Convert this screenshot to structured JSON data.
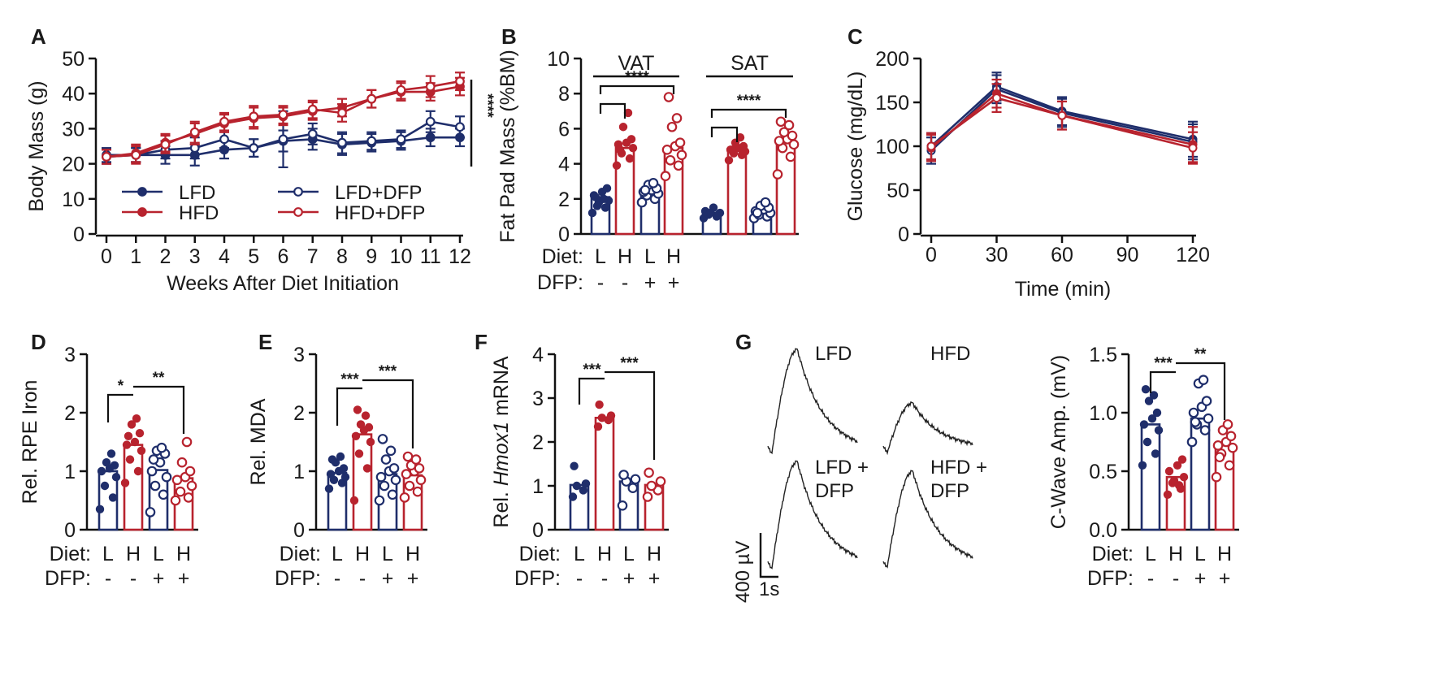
{
  "colors": {
    "lfd": "#1f2e6b",
    "hfd": "#b8232e",
    "text": "#1a1a1a"
  },
  "panel_labels": {
    "A": "A",
    "B": "B",
    "C": "C",
    "D": "D",
    "E": "E",
    "F": "F",
    "G": "G"
  },
  "row_labels": {
    "diet": "Diet:",
    "dfp": "DFP:",
    "diet_values": [
      "L",
      "H",
      "L",
      "H"
    ],
    "dfp_values": [
      "-",
      "-",
      "+",
      "+"
    ]
  },
  "chart_data": [
    {
      "id": "A",
      "type": "line",
      "xlabel": "Weeks After Diet Initiation",
      "ylabel": "Body Mass (g)",
      "xlim": [
        0,
        12
      ],
      "ylim": [
        0,
        50
      ],
      "xticks": [
        0,
        1,
        2,
        3,
        4,
        5,
        6,
        7,
        8,
        9,
        10,
        11,
        12
      ],
      "yticks": [
        0,
        10,
        20,
        30,
        40,
        50
      ],
      "x": [
        0,
        1,
        2,
        3,
        4,
        5,
        6,
        7,
        8,
        9,
        10,
        11,
        12
      ],
      "series": [
        {
          "name": "LFD",
          "values": [
            22.5,
            22.5,
            22.5,
            22.5,
            24,
            24.5,
            26.5,
            27,
            25.5,
            26,
            26.5,
            27.5,
            27.5
          ],
          "err": [
            2,
            2,
            2.5,
            3,
            2.5,
            2.5,
            3,
            3,
            3,
            2.5,
            2.5,
            2.5,
            2.5
          ]
        },
        {
          "name": "LFD+DFP",
          "values": [
            22,
            22.5,
            24,
            24.5,
            27,
            24.5,
            27,
            28.5,
            26,
            26.5,
            27,
            32,
            30.5
          ],
          "err": [
            2,
            2,
            2.5,
            3,
            2.5,
            2.5,
            8,
            3,
            3,
            2.5,
            2.5,
            3,
            3
          ]
        },
        {
          "name": "HFD",
          "values": [
            22,
            23,
            26,
            28.5,
            31.5,
            33,
            33.5,
            35,
            36,
            38.5,
            40.5,
            40.5,
            42
          ],
          "err": [
            2,
            2.5,
            2.5,
            3,
            2.5,
            3,
            2.5,
            2.5,
            2.5,
            2.5,
            2.5,
            2.5,
            2.5
          ]
        },
        {
          "name": "HFD+DFP",
          "values": [
            22,
            22.5,
            25.5,
            29,
            32,
            33.5,
            34,
            35.5,
            34.5,
            38.5,
            41,
            42,
            43.5
          ],
          "err": [
            2,
            2.5,
            2.5,
            3,
            2.5,
            3,
            2.5,
            2.5,
            2.5,
            2.5,
            2.5,
            3,
            2.5
          ]
        }
      ],
      "significance": "****"
    },
    {
      "id": "B",
      "type": "bar",
      "ylabel": "Fat Pad Mass (%BM)",
      "ylim": [
        0,
        10
      ],
      "yticks": [
        0,
        2,
        4,
        6,
        8,
        10
      ],
      "groups": [
        {
          "name": "VAT",
          "means": [
            2.1,
            4.9,
            2.4,
            4.9
          ],
          "significance": "****",
          "points": [
            [
              1.2,
              1.5,
              1.6,
              1.9,
              2.2,
              2.4,
              2.6,
              1.8,
              2.0,
              2.1
            ],
            [
              3.9,
              4.3,
              4.6,
              4.9,
              5.1,
              5.2,
              5.4,
              6.1,
              6.9,
              4.8
            ],
            [
              1.8,
              2.0,
              2.2,
              2.3,
              2.4,
              2.5,
              2.6,
              2.8,
              2.9,
              2.5
            ],
            [
              3.3,
              3.9,
              4.2,
              4.5,
              4.8,
              5.0,
              5.2,
              6.1,
              6.6,
              7.8
            ]
          ]
        },
        {
          "name": "SAT",
          "means": [
            1.2,
            4.8,
            1.3,
            5.4
          ],
          "significance": "****",
          "points": [
            [
              0.9,
              1.0,
              1.1,
              1.2,
              1.3,
              1.5,
              1.1,
              1.2
            ],
            [
              4.2,
              4.5,
              4.6,
              4.7,
              4.8,
              4.9,
              5.0,
              5.2,
              5.5,
              4.8
            ],
            [
              0.9,
              1.0,
              1.1,
              1.2,
              1.3,
              1.4,
              1.5,
              1.6,
              1.8,
              1.2
            ],
            [
              3.4,
              4.4,
              4.9,
              5.1,
              5.3,
              5.4,
              5.6,
              5.8,
              6.2,
              6.4
            ]
          ]
        }
      ]
    },
    {
      "id": "C",
      "type": "line",
      "xlabel": "Time (min)",
      "ylabel": "Glucose (mg/dL)",
      "xlim": [
        0,
        120
      ],
      "ylim": [
        0,
        200
      ],
      "xticks": [
        0,
        30,
        60,
        90,
        120
      ],
      "yticks": [
        0,
        50,
        100,
        150,
        200
      ],
      "x": [
        0,
        30,
        60,
        120
      ],
      "series": [
        {
          "name": "LFD",
          "values": [
            100,
            168,
            140,
            108
          ],
          "err": [
            15,
            16,
            16,
            20
          ]
        },
        {
          "name": "LFD+DFP",
          "values": [
            95,
            165,
            138,
            105
          ],
          "err": [
            15,
            16,
            16,
            20
          ]
        },
        {
          "name": "HFD",
          "values": [
            98,
            160,
            135,
            102
          ],
          "err": [
            15,
            16,
            16,
            20
          ]
        },
        {
          "name": "HFD+DFP",
          "values": [
            100,
            155,
            135,
            98
          ],
          "err": [
            15,
            16,
            16,
            18
          ]
        }
      ]
    },
    {
      "id": "D",
      "type": "bar",
      "ylabel": "Rel. RPE Iron",
      "ylim": [
        0,
        3
      ],
      "yticks": [
        0,
        1,
        2,
        3
      ],
      "means": [
        1.0,
        1.45,
        1.02,
        0.88
      ],
      "points": [
        [
          0.35,
          0.55,
          0.75,
          0.9,
          1.0,
          1.05,
          1.1,
          1.15,
          1.3
        ],
        [
          0.8,
          1.0,
          1.2,
          1.35,
          1.45,
          1.5,
          1.65,
          1.8,
          1.9,
          1.6
        ],
        [
          0.3,
          0.6,
          0.75,
          0.9,
          1.0,
          1.15,
          1.3,
          1.35,
          1.4,
          1.2
        ],
        [
          0.5,
          0.55,
          0.65,
          0.75,
          0.85,
          0.9,
          1.0,
          1.15,
          1.5
        ]
      ],
      "significance": [
        {
          "from": 0,
          "to": 1,
          "label": "*"
        },
        {
          "from": 1,
          "to": 3,
          "label": "**"
        }
      ]
    },
    {
      "id": "E",
      "type": "bar",
      "ylabel": "Rel. MDA",
      "ylim": [
        0,
        3
      ],
      "yticks": [
        0,
        1,
        2,
        3
      ],
      "means": [
        0.97,
        1.63,
        0.95,
        0.93
      ],
      "points": [
        [
          0.7,
          0.8,
          0.85,
          0.9,
          0.95,
          1.0,
          1.05,
          1.15,
          1.25,
          1.2
        ],
        [
          0.5,
          1.05,
          1.3,
          1.5,
          1.6,
          1.7,
          1.75,
          1.8,
          1.95,
          2.05
        ],
        [
          0.5,
          0.6,
          0.75,
          0.85,
          0.9,
          1.0,
          1.05,
          1.2,
          1.35,
          1.55
        ],
        [
          0.55,
          0.65,
          0.75,
          0.85,
          0.95,
          1.0,
          1.05,
          1.1,
          1.2,
          1.25
        ]
      ],
      "significance": [
        {
          "from": 0,
          "to": 1,
          "label": "***"
        },
        {
          "from": 1,
          "to": 3,
          "label": "***"
        }
      ]
    },
    {
      "id": "F",
      "type": "bar",
      "ylabel_prefix": "Rel. ",
      "ylabel_gene": "Hmox1",
      "ylabel_suffix": " mRNA",
      "ylim": [
        0,
        4
      ],
      "yticks": [
        0,
        1,
        2,
        3,
        4
      ],
      "means": [
        1.02,
        2.55,
        1.1,
        1.02
      ],
      "points": [
        [
          0.75,
          0.9,
          1.0,
          1.05,
          1.45
        ],
        [
          2.35,
          2.5,
          2.55,
          2.6,
          2.85
        ],
        [
          0.55,
          0.95,
          1.1,
          1.15,
          1.25
        ],
        [
          0.75,
          0.9,
          1.0,
          1.1,
          1.3
        ]
      ],
      "significance": [
        {
          "from": 0,
          "to": 1,
          "label": "***"
        },
        {
          "from": 1,
          "to": 3,
          "label": "***"
        }
      ]
    },
    {
      "id": "G",
      "type": "bar",
      "ylabel": "C-Wave Amp. (mV)",
      "ylim": [
        0,
        1.5
      ],
      "yticks": [
        "0.0",
        "0.5",
        "1.0",
        "1.5"
      ],
      "means": [
        0.9,
        0.45,
        0.95,
        0.72
      ],
      "points": [
        [
          0.55,
          0.65,
          0.75,
          0.85,
          0.9,
          0.95,
          1.0,
          1.1,
          1.15,
          1.2
        ],
        [
          0.3,
          0.35,
          0.4,
          0.45,
          0.5,
          0.55,
          0.6,
          0.42,
          0.38
        ],
        [
          0.75,
          0.85,
          0.9,
          0.95,
          1.0,
          1.05,
          1.1,
          1.25,
          1.28,
          0.92
        ],
        [
          0.45,
          0.55,
          0.65,
          0.7,
          0.72,
          0.75,
          0.8,
          0.85,
          0.9,
          0.62
        ]
      ],
      "significance": [
        {
          "from": 0,
          "to": 1,
          "label": "***"
        },
        {
          "from": 1,
          "to": 3,
          "label": "**"
        }
      ]
    }
  ],
  "traces": {
    "labels": {
      "lfd": "LFD",
      "hfd": "HFD",
      "lfd_dfp_1": "LFD +",
      "lfd_dfp_2": "DFP",
      "hfd_dfp_1": "HFD +",
      "hfd_dfp_2": "DFP"
    },
    "scale_voltage": "400 µV",
    "scale_time": "1s"
  }
}
